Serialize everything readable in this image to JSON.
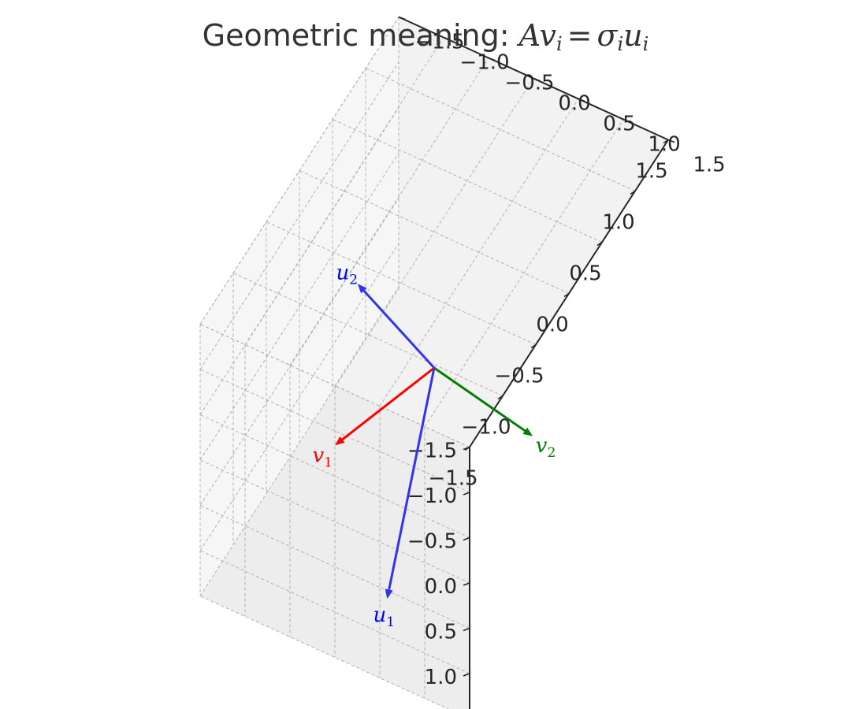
{
  "chart_data": {
    "type": "3d-vector-plot",
    "title": "Geometric meaning: Avᵢ = σᵢuᵢ",
    "title_parts": {
      "prefix": "Geometric meaning: ",
      "A": "A",
      "v": "v",
      "i": "i",
      "eq": "=",
      "sigma": "σ",
      "u": "u"
    },
    "xlim": [
      -1.5,
      1.5
    ],
    "ylim": [
      -1.5,
      1.5
    ],
    "zlim": [
      -1.5,
      1.5
    ],
    "ticks": [
      -1.5,
      -1.0,
      -0.5,
      0.0,
      0.5,
      1.0,
      1.5
    ],
    "tick_labels": [
      "−1.5",
      "−1.0",
      "−0.5",
      "0.0",
      "0.5",
      "1.0",
      "1.5"
    ],
    "grid": true,
    "vectors": [
      {
        "base": "v",
        "sub": "1",
        "color": "#ff0000",
        "xyz": [
          -0.55,
          0.7,
          0.55
        ]
      },
      {
        "base": "v",
        "sub": "2",
        "color": "#008000",
        "xyz": [
          0.2,
          -0.95,
          0.55
        ]
      },
      {
        "base": "u",
        "sub": "1",
        "color": "#0000ff",
        "line_color": "#3333ee",
        "xyz": [
          -1.05,
          -0.25,
          1.25
        ]
      },
      {
        "base": "u",
        "sub": "2",
        "color": "#0000ff",
        "line_color": "#3333ee",
        "xyz": [
          0.2,
          1.0,
          -0.25
        ]
      }
    ]
  }
}
